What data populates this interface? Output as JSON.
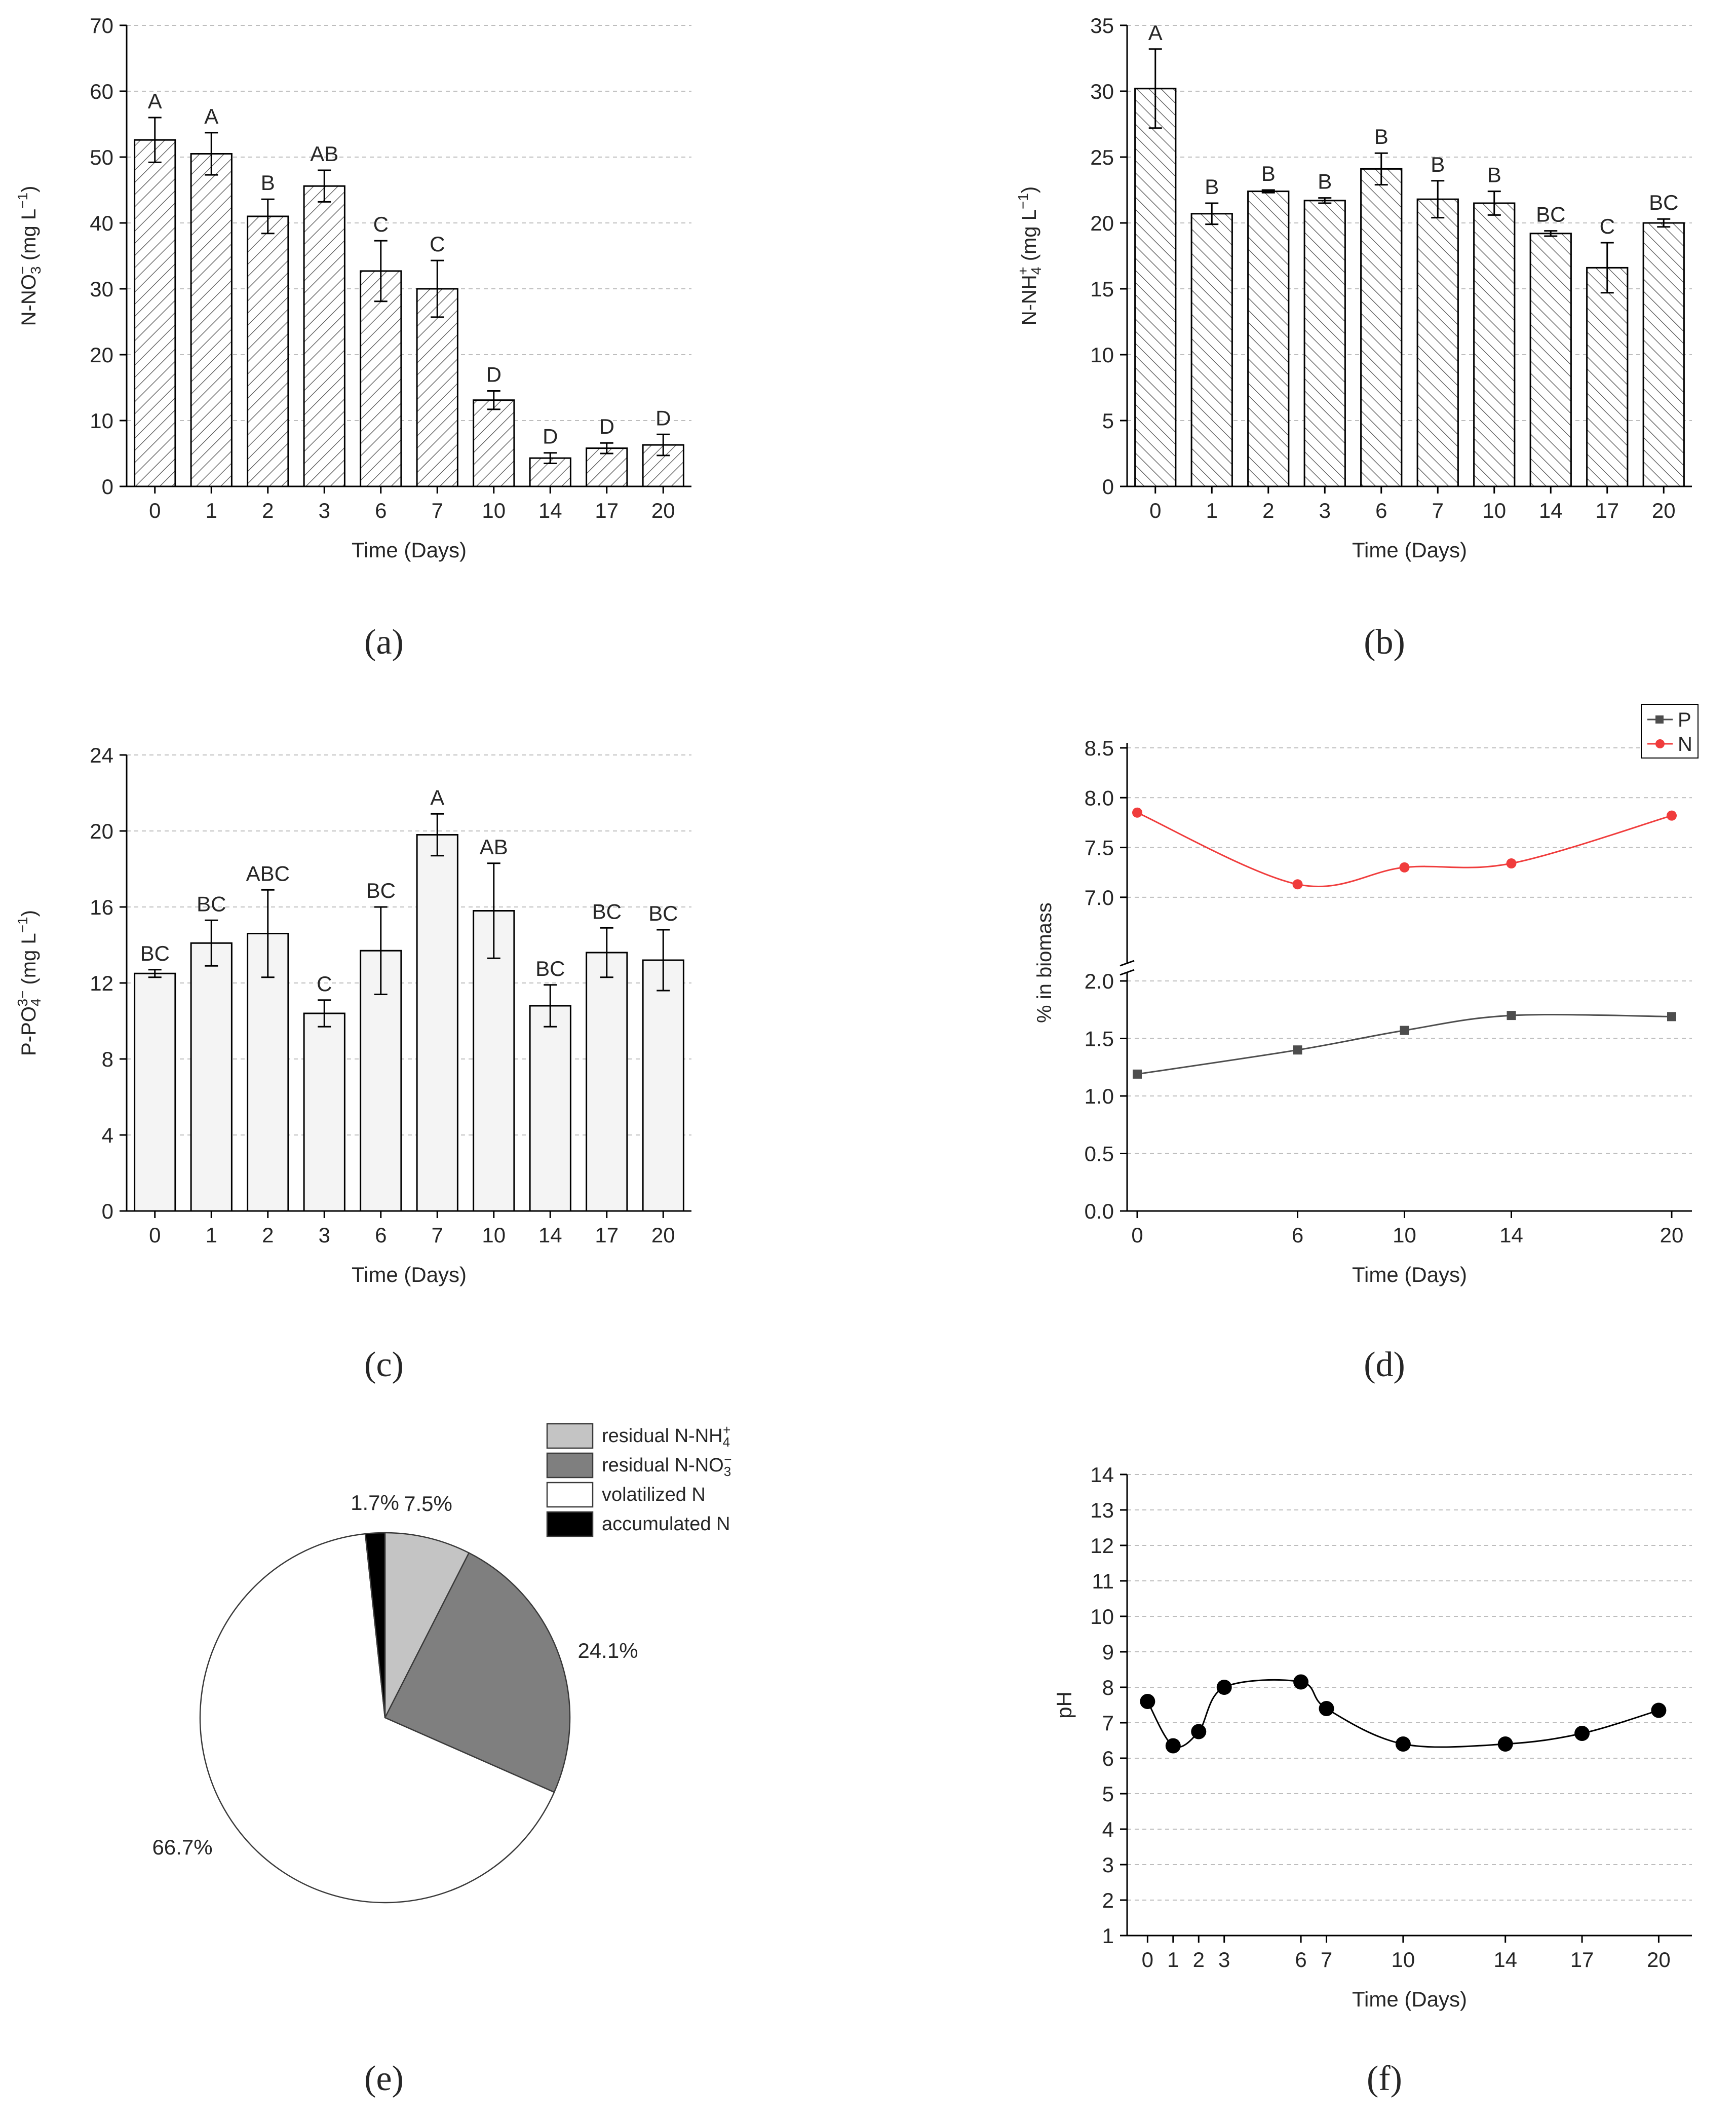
{
  "panel_labels": [
    "(a)",
    "(b)",
    "(c)",
    "(d)",
    "(e)",
    "(f)"
  ],
  "chart_data": [
    {
      "panel": "a",
      "type": "bar",
      "xlabel": "Time (Days)",
      "ylabel_main": "N-NO",
      "ylabel_sub": "3",
      "ylabel_sup": "−",
      "ylabel_units": " (mg L",
      "ylabel_units_sup": "−1",
      "ylabel_close": ")",
      "ylim": [
        0,
        70
      ],
      "yticks": [
        0,
        10,
        20,
        30,
        40,
        50,
        60,
        70
      ],
      "grid": true,
      "fill": "hatch-forward",
      "categories": [
        "0",
        "1",
        "2",
        "3",
        "6",
        "7",
        "10",
        "14",
        "17",
        "20"
      ],
      "values": [
        52.6,
        50.5,
        41.0,
        45.6,
        32.7,
        30.0,
        13.1,
        4.3,
        5.8,
        6.3
      ],
      "errors": [
        3.4,
        3.2,
        2.6,
        2.4,
        4.6,
        4.3,
        1.4,
        0.8,
        0.8,
        1.6
      ],
      "letters": [
        "A",
        "A",
        "B",
        "AB",
        "C",
        "C",
        "D",
        "D",
        "D",
        "D"
      ]
    },
    {
      "panel": "b",
      "type": "bar",
      "xlabel": "Time (Days)",
      "ylabel_main": "N-NH",
      "ylabel_sub": "4",
      "ylabel_sup": "+",
      "ylabel_units": " (mg L",
      "ylabel_units_sup": "−1",
      "ylabel_close": ")",
      "ylim": [
        0,
        35
      ],
      "yticks": [
        0,
        5,
        10,
        15,
        20,
        25,
        30,
        35
      ],
      "grid": true,
      "fill": "hatch-back",
      "categories": [
        "0",
        "1",
        "2",
        "3",
        "6",
        "7",
        "10",
        "14",
        "17",
        "20"
      ],
      "values": [
        30.2,
        20.7,
        22.4,
        21.7,
        24.1,
        21.8,
        21.5,
        19.2,
        16.6,
        20.0
      ],
      "errors": [
        3.0,
        0.8,
        0.1,
        0.2,
        1.2,
        1.4,
        0.9,
        0.2,
        1.9,
        0.3
      ],
      "letters": [
        "A",
        "B",
        "B",
        "B",
        "B",
        "B",
        "B",
        "BC",
        "C",
        "BC"
      ]
    },
    {
      "panel": "c",
      "type": "bar",
      "xlabel": "Time (Days)",
      "ylabel_main": "P-PO",
      "ylabel_sub": "4",
      "ylabel_sup": "3−",
      "ylabel_units": " (mg L",
      "ylabel_units_sup": "−1",
      "ylabel_close": ")",
      "ylim": [
        0,
        24
      ],
      "yticks": [
        0,
        4,
        8,
        12,
        16,
        20,
        24
      ],
      "grid": true,
      "fill": "light",
      "categories": [
        "0",
        "1",
        "2",
        "3",
        "6",
        "7",
        "10",
        "14",
        "17",
        "20"
      ],
      "values": [
        12.5,
        14.1,
        14.6,
        10.4,
        13.7,
        19.8,
        15.8,
        10.8,
        13.6,
        13.2
      ],
      "errors": [
        0.2,
        1.2,
        2.3,
        0.7,
        2.3,
        1.1,
        2.5,
        1.1,
        1.3,
        1.6
      ],
      "letters": [
        "BC",
        "BC",
        "ABC",
        "C",
        "BC",
        "A",
        "AB",
        "BC",
        "BC",
        "BC"
      ]
    },
    {
      "panel": "d",
      "type": "line",
      "xlabel": "Time (Days)",
      "ylabel": "% in biomass",
      "xlim": [
        0,
        20
      ],
      "xticks": [
        0,
        6,
        10,
        14,
        20
      ],
      "y_lower_range": [
        0,
        2.0
      ],
      "y_lower_ticks": [
        "0.0",
        "0.5",
        "1.0",
        "1.5",
        "2.0"
      ],
      "y_upper_range": [
        6.75,
        8.5
      ],
      "y_upper_ticks": [
        "7.0",
        "7.5",
        "8.0",
        "8.5"
      ],
      "axis_break": true,
      "grid": true,
      "legend_position": "top-right",
      "series": [
        {
          "name": "P",
          "color": "#4d4d4d",
          "marker": "square",
          "x": [
            0,
            6,
            10,
            14,
            20
          ],
          "values": [
            1.19,
            1.4,
            1.57,
            1.7,
            1.69
          ]
        },
        {
          "name": "N",
          "color": "#f03c3c",
          "marker": "circle",
          "x": [
            0,
            6,
            10,
            14,
            20
          ],
          "values": [
            7.85,
            7.13,
            7.3,
            7.34,
            7.82
          ]
        }
      ]
    },
    {
      "panel": "e",
      "type": "pie",
      "legend_position": "top-right",
      "slices": [
        {
          "name": "residual N-NH",
          "sub": "4",
          "sup": "+",
          "value": 7.5,
          "label": "7.5%",
          "color": "#c4c4c4"
        },
        {
          "name": "residual N-NO",
          "sub": "3",
          "sup": "−",
          "value": 24.1,
          "label": "24.1%",
          "color": "#7f7f7f"
        },
        {
          "name": "volatilized N",
          "sub": "",
          "sup": "",
          "value": 66.7,
          "label": "66.7%",
          "color": "#ffffff"
        },
        {
          "name": "accumulated N",
          "sub": "",
          "sup": "",
          "value": 1.7,
          "label": "1.7%",
          "color": "#000000"
        }
      ]
    },
    {
      "panel": "f",
      "type": "line",
      "xlabel": "Time (Days)",
      "ylabel": "pH",
      "xlim": [
        -0.8,
        21.3
      ],
      "xticks": [
        0,
        1,
        2,
        3,
        6,
        7,
        10,
        14,
        17,
        20
      ],
      "ylim": [
        1,
        14
      ],
      "yticks": [
        1,
        2,
        3,
        4,
        5,
        6,
        7,
        8,
        9,
        10,
        11,
        12,
        13,
        14
      ],
      "grid": true,
      "series": [
        {
          "name": "pH",
          "color": "#000000",
          "marker": "circle",
          "x": [
            0,
            1,
            2,
            3,
            6,
            7,
            10,
            14,
            17,
            20
          ],
          "values": [
            7.6,
            6.35,
            6.75,
            8.0,
            8.15,
            7.4,
            6.4,
            6.4,
            6.7,
            7.35
          ]
        }
      ]
    }
  ]
}
